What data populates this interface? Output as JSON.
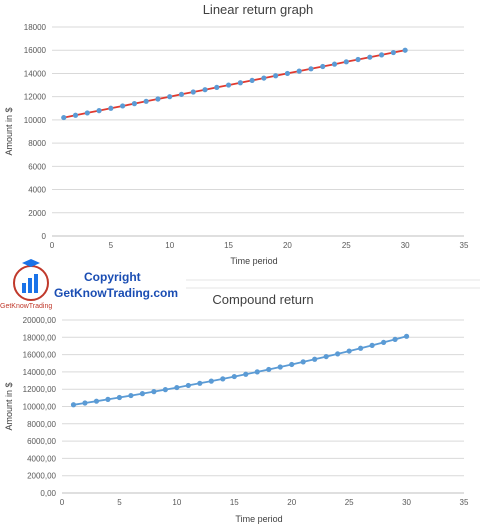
{
  "chart_data": [
    {
      "type": "line",
      "title": "Linear return graph",
      "xlabel": "Time period",
      "ylabel": "Amount in $",
      "xlim": [
        0,
        35
      ],
      "ylim": [
        0,
        18000
      ],
      "xticks": [
        "0",
        "5",
        "10",
        "15",
        "20",
        "25",
        "30",
        "35"
      ],
      "yticks": [
        "0",
        "2000",
        "4000",
        "6000",
        "8000",
        "10000",
        "12000",
        "14000",
        "16000",
        "18000"
      ],
      "grid": true,
      "series": [
        {
          "x": [
            1,
            2,
            3,
            4,
            5,
            6,
            7,
            8,
            9,
            10,
            11,
            12,
            13,
            14,
            15,
            16,
            17,
            18,
            19,
            20,
            21,
            22,
            23,
            24,
            25,
            26,
            27,
            28,
            29,
            30
          ],
          "values": [
            10200,
            10400,
            10600,
            10800,
            11000,
            11200,
            11400,
            11600,
            11800,
            12000,
            12200,
            12400,
            12600,
            12800,
            13000,
            13200,
            13400,
            13600,
            13800,
            14000,
            14200,
            14400,
            14600,
            14800,
            15000,
            15200,
            15400,
            15600,
            15800,
            16000
          ],
          "line_color": "#e03a2f",
          "marker_color": "#5b9bd5"
        }
      ]
    },
    {
      "type": "line",
      "title": "Compound return",
      "xlabel": "Time period",
      "ylabel": "Amount in $",
      "xlim": [
        0,
        35
      ],
      "ylim": [
        0,
        20000
      ],
      "xticks": [
        "0",
        "5",
        "10",
        "15",
        "20",
        "25",
        "30",
        "35"
      ],
      "yticks": [
        "0,00",
        "2000,00",
        "4000,00",
        "6000,00",
        "8000,00",
        "10000,00",
        "12000,00",
        "14000,00",
        "16000,00",
        "18000,00",
        "20000,00"
      ],
      "grid": true,
      "series": [
        {
          "x": [
            1,
            2,
            3,
            4,
            5,
            6,
            7,
            8,
            9,
            10,
            11,
            12,
            13,
            14,
            15,
            16,
            17,
            18,
            19,
            20,
            21,
            22,
            23,
            24,
            25,
            26,
            27,
            28,
            29,
            30
          ],
          "values": [
            10200,
            10404,
            10612,
            10824,
            11041,
            11262,
            11487,
            11717,
            11951,
            12190,
            12434,
            12682,
            12936,
            13195,
            13459,
            13728,
            14002,
            14282,
            14568,
            14859,
            15157,
            15460,
            15769,
            16084,
            16406,
            16734,
            17069,
            17410,
            17758,
            18114
          ],
          "line_color": "#5b9bd5",
          "marker_color": "#5b9bd5"
        }
      ]
    }
  ],
  "watermark": {
    "line1": "Copyright",
    "line2": "GetKnowTrading.com",
    "small": "GetKnowTrading"
  }
}
